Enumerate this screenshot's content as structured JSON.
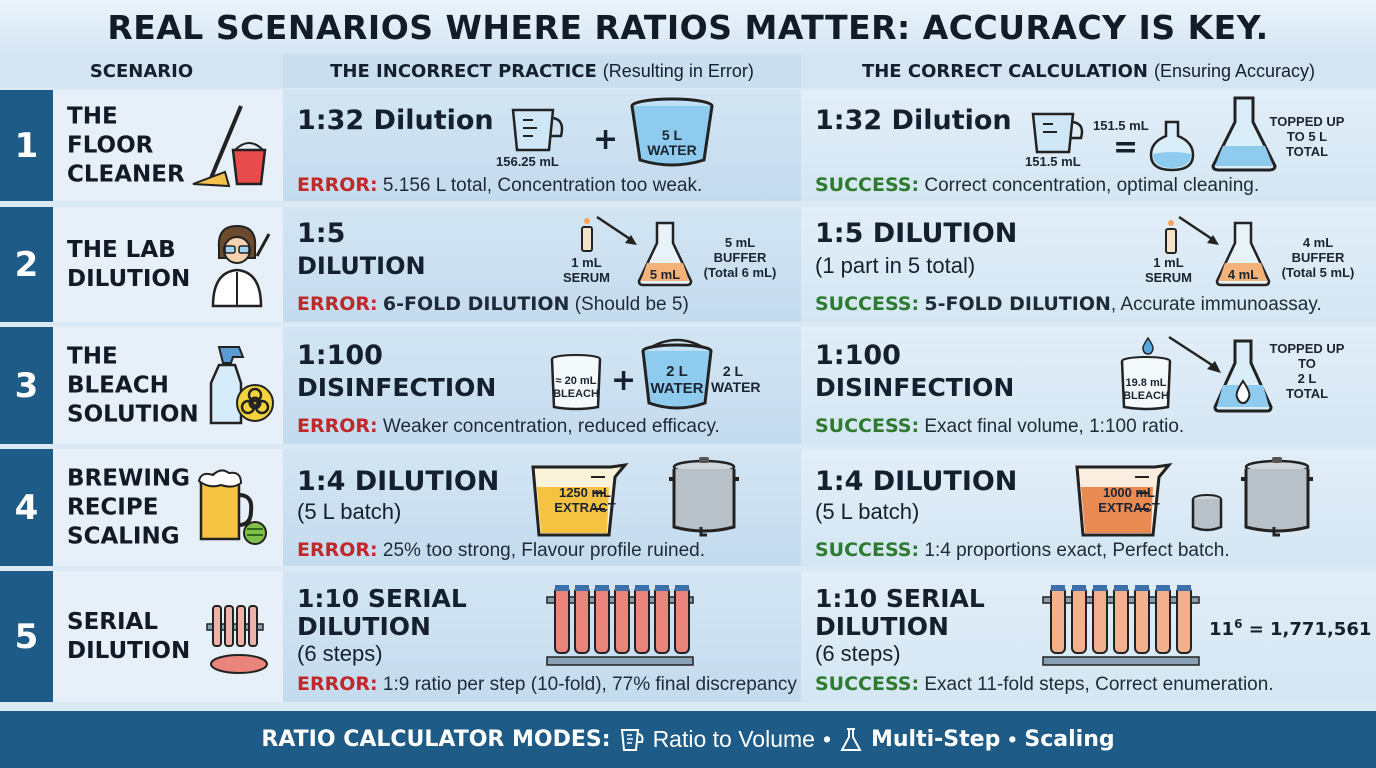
{
  "title": "REAL SCENARIOS WHERE RATIOS MATTER: ACCURACY IS KEY.",
  "headers": {
    "scenario": "SCENARIO",
    "incorrect": "THE INCORRECT PRACTICE",
    "incorrect_note": "(Resulting in Error)",
    "correct": "THE CORRECT CALCULATION",
    "correct_note": "(Ensuring Accuracy)"
  },
  "labels": {
    "error": "ERROR:",
    "success": "SUCCESS:"
  },
  "rows": [
    {
      "number": "1",
      "scenario": "THE FLOOR\nCLEANER",
      "incorrect": {
        "title": "1:32 Dilution",
        "sub": "",
        "status": "5.156 L total, Concentration too weak.",
        "art_labels": [
          "156.25 mL",
          "5 L\nWATER"
        ]
      },
      "correct": {
        "title": "1:32 Dilution",
        "sub": "",
        "status": "Correct concentration, optimal cleaning.",
        "art_labels": [
          "151.5 mL",
          "151.5 mL",
          "TOPPED UP\nTO 5 L\nTOTAL"
        ]
      }
    },
    {
      "number": "2",
      "scenario": "THE LAB\nDILUTION",
      "incorrect": {
        "title": "1:5",
        "sub_bold": "DILUTION",
        "status_bold": "6-FOLD DILUTION",
        "status": "(Should be 5)",
        "art_labels": [
          "1 mL\nSERUM",
          "5 mL",
          "5 mL\nBUFFER\n(Total 6 mL)"
        ]
      },
      "correct": {
        "title": "1:5 DILUTION",
        "sub": "(1 part in 5 total)",
        "status_bold": "5-FOLD DILUTION",
        "status": ", Accurate immunoassay.",
        "art_labels": [
          "1 mL\nSERUM",
          "4 mL",
          "4 mL\nBUFFER\n(Total 5 mL)"
        ]
      }
    },
    {
      "number": "3",
      "scenario": "THE BLEACH\nSOLUTION",
      "incorrect": {
        "title": "1:100",
        "sub_bold": "DISINFECTION",
        "status": "Weaker concentration, reduced efficacy.",
        "art_labels": [
          "≈ 20 mL\nBLEACH",
          "2 L\nWATER",
          "2 L\nWATER"
        ]
      },
      "correct": {
        "title": "1:100",
        "sub_bold": "DISINFECTION",
        "status": "Exact final volume, 1:100 ratio.",
        "art_labels": [
          "19.8 mL\nBLEACH",
          "TOPPED UP\nTO\n2 L\nTOTAL"
        ]
      }
    },
    {
      "number": "4",
      "scenario": "BREWING\nRECIPE\nSCALING",
      "incorrect": {
        "title": "1:4 DILUTION",
        "sub": "(5 L batch)",
        "status": "25% too strong, Flavour profile ruined.",
        "art_labels": [
          "1250 mL\nEXTRACT"
        ]
      },
      "correct": {
        "title": "1:4 DILUTION",
        "sub": "(5 L batch)",
        "status": "1:4 proportions exact, Perfect batch.",
        "art_labels": [
          "1000 mL\nEXTRACT"
        ]
      }
    },
    {
      "number": "5",
      "scenario": "SERIAL\nDILUTION",
      "incorrect": {
        "title": "1:10 SERIAL\nDILUTION",
        "sub": "(6 steps)",
        "status": "1:9 ratio per step (10-fold), 77% final discrepancy"
      },
      "correct": {
        "title": "1:10 SERIAL\nDILUTION",
        "sub": "(6 steps)",
        "status": "Exact 11-fold steps, Correct enumeration.",
        "formula_base": "11",
        "formula_exp": "6",
        "formula_rest": " = 1,771,561"
      }
    }
  ],
  "footer": {
    "label": "RATIO CALCULATOR MODES:",
    "mode1": "Ratio to Volume",
    "sep": "•",
    "mode2": "Multi-Step",
    "mode3": "Scaling"
  }
}
